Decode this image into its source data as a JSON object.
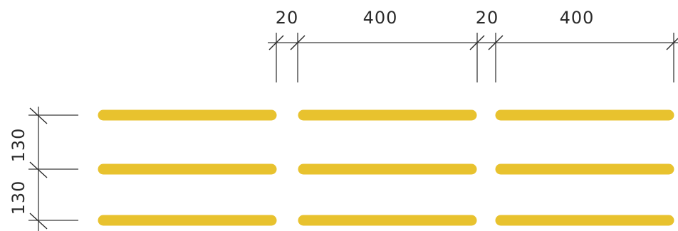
{
  "dimensions": {
    "gap_1": "20",
    "length_1": "400",
    "gap_2": "20",
    "length_2": "400",
    "spacing_1": "130",
    "spacing_2": "130"
  },
  "colors": {
    "strip": "#E8C22E",
    "line": "#3a3a3a"
  }
}
